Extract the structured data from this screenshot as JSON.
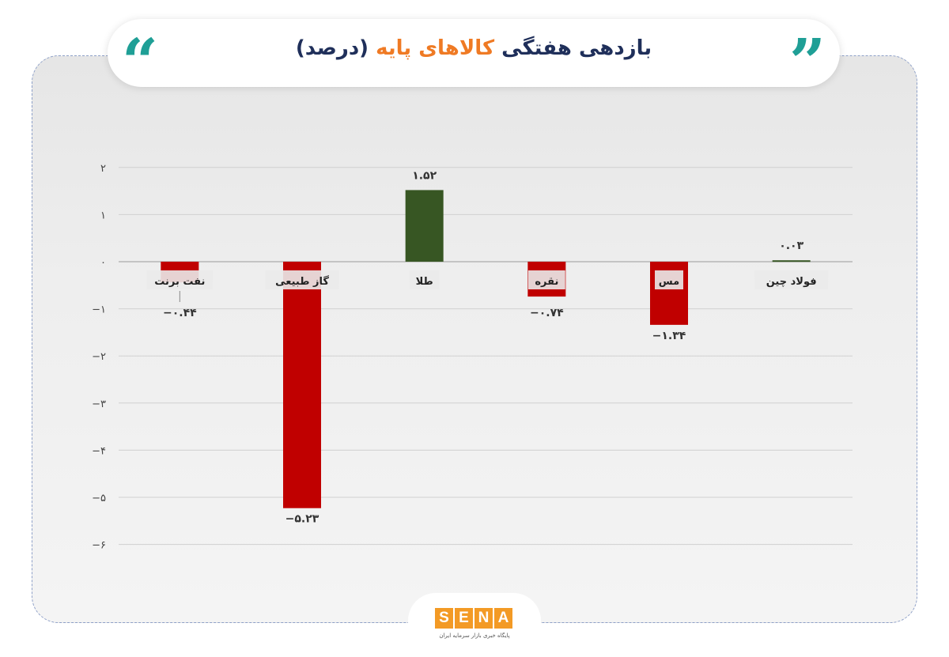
{
  "header": {
    "title_dark_1": "بازدهی هفتگی",
    "title_accent": "کالاهای پایه",
    "title_dark_2": "(درصد)",
    "open_quote": "“",
    "close_quote": "”"
  },
  "logo": {
    "letters": [
      "S",
      "E",
      "N",
      "A"
    ],
    "subtitle": "پایگاه خبری بازار سرمایه ایران"
  },
  "colors": {
    "negative": "#c00000",
    "positive": "#375623",
    "grid": "#d0d0d0",
    "accent": "#ef7a24",
    "title": "#1f2f5a",
    "quote": "#1f9f96"
  },
  "chart_data": {
    "type": "bar",
    "title": "بازدهی هفتگی کالاهای پایه (درصد)",
    "categories": [
      "نفت برنت",
      "گاز طبیعی",
      "طلا",
      "نقره",
      "مس",
      "فولاد چین"
    ],
    "values": [
      -0.44,
      -5.23,
      1.52,
      -0.74,
      -1.34,
      0.03
    ],
    "value_labels": [
      "−۰.۴۴",
      "−۵.۲۳",
      "۱.۵۲",
      "−۰.۷۴",
      "−۱.۳۴",
      "۰.۰۳"
    ],
    "ylim": [
      -6,
      2
    ],
    "yticks": [
      2,
      1,
      0,
      -1,
      -2,
      -3,
      -4,
      -5,
      -6
    ],
    "ytick_labels": [
      "۲",
      "۱",
      "۰",
      "−۱",
      "−۲",
      "−۳",
      "−۴",
      "−۵",
      "−۶"
    ],
    "grid": true,
    "xlabel": "",
    "ylabel": ""
  }
}
